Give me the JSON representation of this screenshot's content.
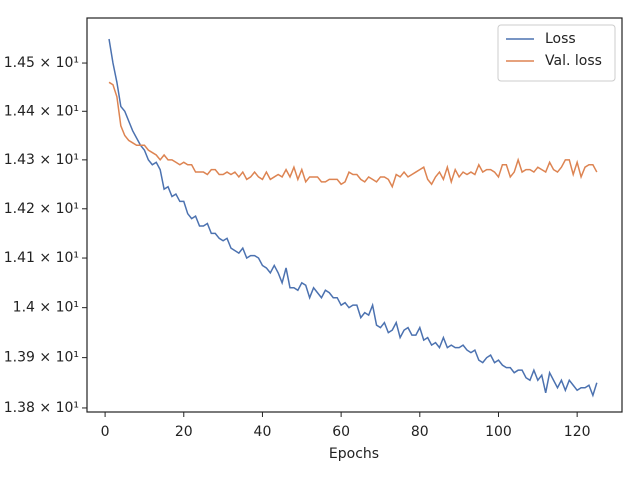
{
  "chart_data": {
    "type": "line",
    "xlabel": "Epochs",
    "yscale": "log",
    "grid": false,
    "legend": "upper right",
    "xlim": [
      -4.6,
      131.4
    ],
    "xticks": [
      0,
      20,
      40,
      60,
      80,
      100,
      120
    ],
    "ylim": [
      13.792,
      14.594
    ],
    "yticks": [
      {
        "value": 13.8,
        "label": "1.38 × 10¹"
      },
      {
        "value": 13.9,
        "label": "1.39 × 10¹"
      },
      {
        "value": 14.0,
        "label": "1.4 × 10¹"
      },
      {
        "value": 14.1,
        "label": "1.41 × 10¹"
      },
      {
        "value": 14.2,
        "label": "1.42 × 10¹"
      },
      {
        "value": 14.3,
        "label": "1.43 × 10¹"
      },
      {
        "value": 14.4,
        "label": "1.44 × 10¹"
      },
      {
        "value": 14.5,
        "label": "1.45 × 10¹"
      }
    ],
    "x": [
      1,
      2,
      3,
      4,
      5,
      6,
      7,
      8,
      9,
      10,
      11,
      12,
      13,
      14,
      15,
      16,
      17,
      18,
      19,
      20,
      21,
      22,
      23,
      24,
      25,
      26,
      27,
      28,
      29,
      30,
      31,
      32,
      33,
      34,
      35,
      36,
      37,
      38,
      39,
      40,
      41,
      42,
      43,
      44,
      45,
      46,
      47,
      48,
      49,
      50,
      51,
      52,
      53,
      54,
      55,
      56,
      57,
      58,
      59,
      60,
      61,
      62,
      63,
      64,
      65,
      66,
      67,
      68,
      69,
      70,
      71,
      72,
      73,
      74,
      75,
      76,
      77,
      78,
      79,
      80,
      81,
      82,
      83,
      84,
      85,
      86,
      87,
      88,
      89,
      90,
      91,
      92,
      93,
      94,
      95,
      96,
      97,
      98,
      99,
      100,
      101,
      102,
      103,
      104,
      105,
      106,
      107,
      108,
      109,
      110,
      111,
      112,
      113,
      114,
      115,
      116,
      117,
      118,
      119,
      120,
      121,
      122,
      123,
      124,
      125
    ],
    "series": [
      {
        "name": "Loss",
        "color": "#4c72b0",
        "values": [
          14.55,
          14.5,
          14.46,
          14.41,
          14.4,
          14.38,
          14.36,
          14.345,
          14.33,
          14.32,
          14.3,
          14.29,
          14.295,
          14.28,
          14.24,
          14.245,
          14.225,
          14.23,
          14.215,
          14.215,
          14.19,
          14.18,
          14.185,
          14.165,
          14.165,
          14.17,
          14.15,
          14.15,
          14.14,
          14.135,
          14.14,
          14.12,
          14.115,
          14.11,
          14.12,
          14.1,
          14.105,
          14.105,
          14.1,
          14.085,
          14.08,
          14.07,
          14.085,
          14.07,
          14.05,
          14.08,
          14.04,
          14.04,
          14.035,
          14.05,
          14.045,
          14.02,
          14.04,
          14.03,
          14.02,
          14.035,
          14.03,
          14.02,
          14.02,
          14.005,
          14.01,
          14.0,
          14.005,
          14.005,
          13.98,
          13.99,
          13.985,
          14.005,
          13.965,
          13.96,
          13.97,
          13.95,
          13.955,
          13.97,
          13.94,
          13.955,
          13.96,
          13.945,
          13.945,
          13.96,
          13.935,
          13.94,
          13.925,
          13.93,
          13.92,
          13.94,
          13.92,
          13.925,
          13.92,
          13.92,
          13.925,
          13.915,
          13.91,
          13.915,
          13.895,
          13.89,
          13.9,
          13.905,
          13.89,
          13.895,
          13.885,
          13.88,
          13.88,
          13.87,
          13.875,
          13.875,
          13.86,
          13.855,
          13.875,
          13.855,
          13.865,
          13.83,
          13.87,
          13.855,
          13.84,
          13.855,
          13.835,
          13.855,
          13.845,
          13.835,
          13.84,
          13.84,
          13.845,
          13.825,
          13.85
        ]
      },
      {
        "name": "Val. loss",
        "color": "#dd8452",
        "values": [
          14.46,
          14.455,
          14.43,
          14.37,
          14.35,
          14.34,
          14.335,
          14.33,
          14.33,
          14.33,
          14.32,
          14.315,
          14.31,
          14.3,
          14.31,
          14.3,
          14.3,
          14.295,
          14.29,
          14.295,
          14.29,
          14.29,
          14.275,
          14.275,
          14.275,
          14.27,
          14.28,
          14.28,
          14.27,
          14.27,
          14.275,
          14.27,
          14.275,
          14.265,
          14.275,
          14.26,
          14.265,
          14.275,
          14.265,
          14.26,
          14.275,
          14.26,
          14.265,
          14.27,
          14.265,
          14.28,
          14.265,
          14.285,
          14.26,
          14.28,
          14.255,
          14.265,
          14.265,
          14.265,
          14.255,
          14.255,
          14.26,
          14.26,
          14.26,
          14.25,
          14.255,
          14.275,
          14.27,
          14.27,
          14.26,
          14.255,
          14.265,
          14.26,
          14.255,
          14.265,
          14.265,
          14.26,
          14.245,
          14.27,
          14.265,
          14.275,
          14.265,
          14.27,
          14.275,
          14.28,
          14.285,
          14.26,
          14.25,
          14.265,
          14.275,
          14.26,
          14.285,
          14.255,
          14.28,
          14.265,
          14.275,
          14.27,
          14.275,
          14.27,
          14.29,
          14.275,
          14.28,
          14.28,
          14.275,
          14.265,
          14.29,
          14.29,
          14.265,
          14.275,
          14.3,
          14.275,
          14.28,
          14.28,
          14.275,
          14.285,
          14.28,
          14.275,
          14.295,
          14.28,
          14.275,
          14.285,
          14.3,
          14.3,
          14.27,
          14.295,
          14.265,
          14.285,
          14.29,
          14.29,
          14.275
        ]
      }
    ]
  }
}
